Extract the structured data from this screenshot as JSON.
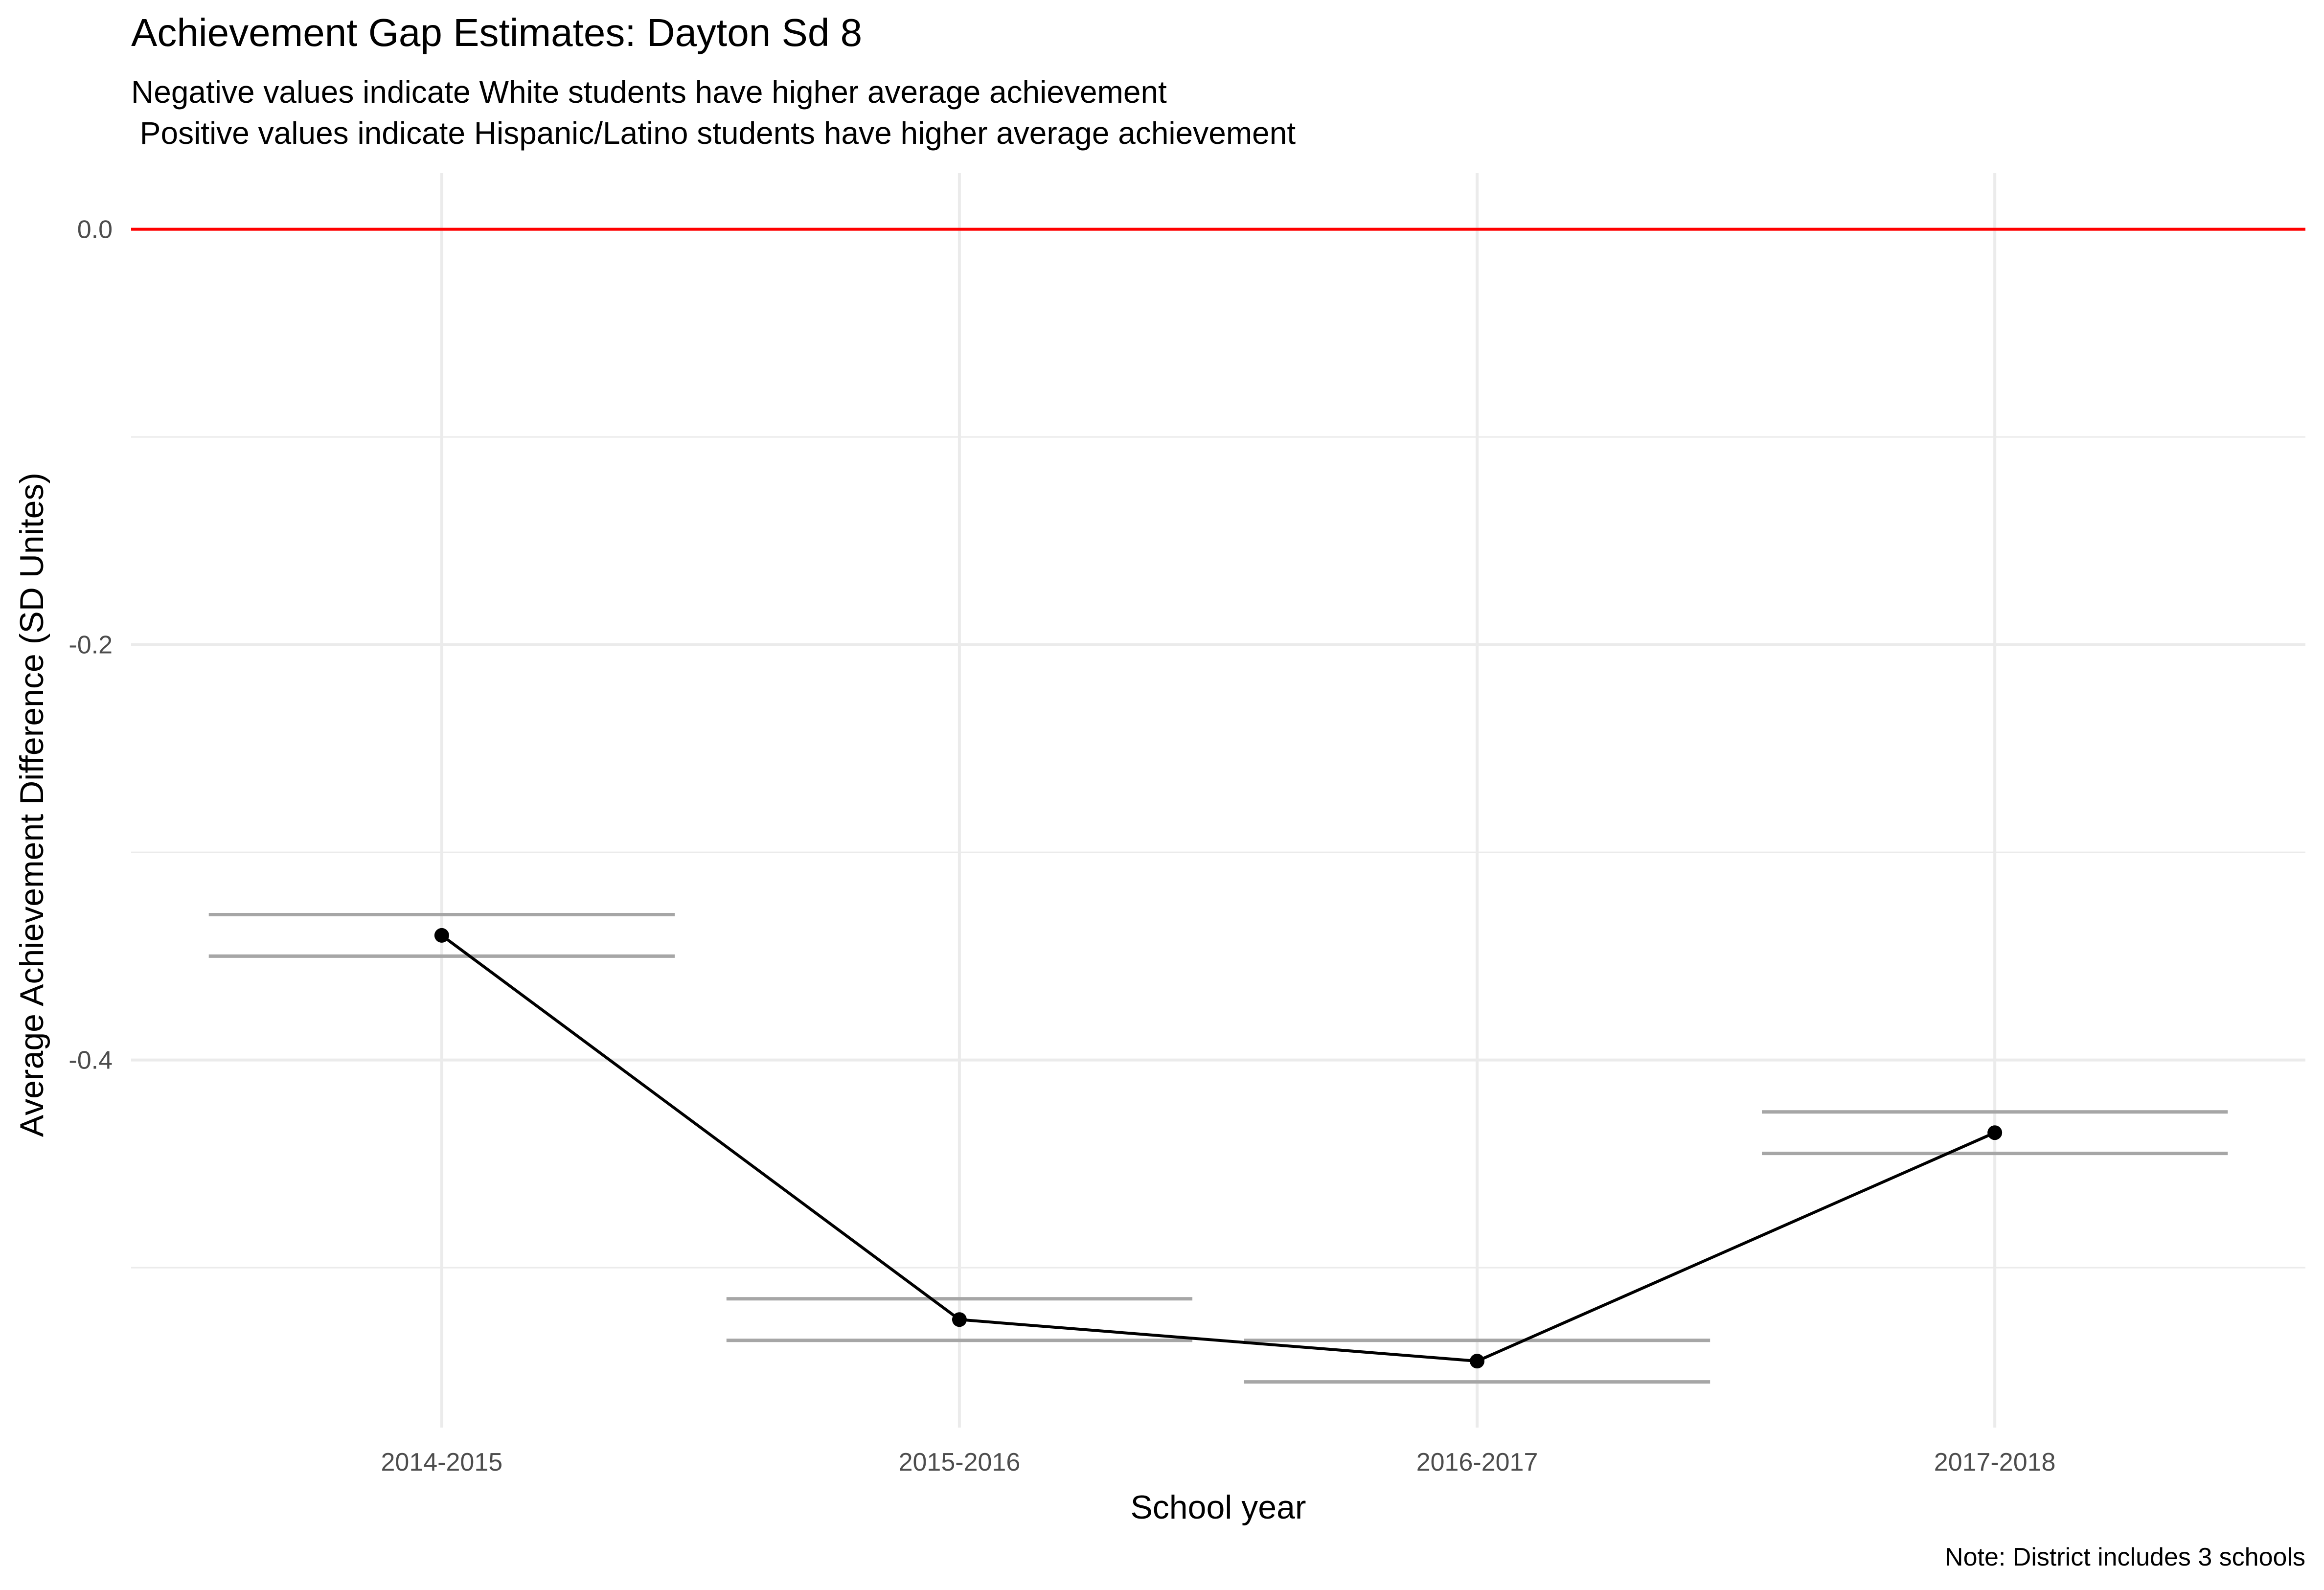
{
  "chart_data": {
    "type": "line",
    "title": "Achievement Gap Estimates: Dayton Sd 8",
    "subtitle_lines": [
      "Negative values indicate White students have higher average achievement",
      " Positive values indicate Hispanic/Latino students have higher average achievement"
    ],
    "xlabel": "School year",
    "ylabel": "Average Achievement Difference (SD Unites)",
    "caption": "Note: District includes 3 schools",
    "categories": [
      "2014-2015",
      "2015-2016",
      "2016-2017",
      "2017-2018"
    ],
    "series": [
      {
        "values": [
          -0.34,
          -0.525,
          -0.545,
          -0.435
        ]
      }
    ],
    "error_bars": [
      {
        "lower": -0.35,
        "upper": -0.33
      },
      {
        "lower": -0.535,
        "upper": -0.515
      },
      {
        "lower": -0.555,
        "upper": -0.535
      },
      {
        "lower": -0.445,
        "upper": -0.425
      }
    ],
    "reference_line": {
      "y": 0.0,
      "color": "#ff0000"
    },
    "yticks": [
      0.0,
      -0.2,
      -0.4
    ],
    "ytick_labels": [
      "0.0",
      "-0.2",
      "-0.4"
    ],
    "ylim": [
      -0.577,
      0.027
    ],
    "grid": true,
    "colors": {
      "line": "#000000",
      "points": "#000000",
      "error_bars": "#a6a6a6",
      "grid": "#ebebeb",
      "zero_line": "#ff0000"
    }
  }
}
